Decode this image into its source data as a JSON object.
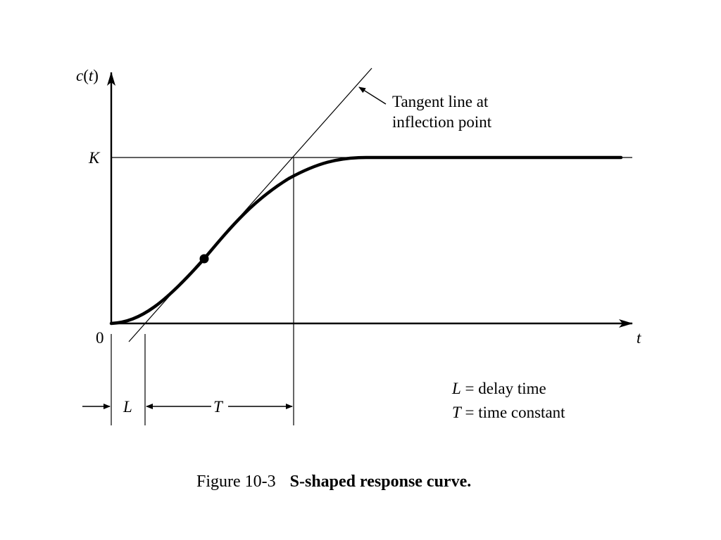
{
  "figure": {
    "number_label": "Figure 10-3",
    "caption": "S-shaped response curve."
  },
  "axes": {
    "y_label_prefix": "c(",
    "y_label_var": "t",
    "y_label_suffix": ")",
    "x_label": "t",
    "origin_label": "0",
    "k_label": "K"
  },
  "annotations": {
    "tangent_line_1": "Tangent line at",
    "tangent_line_2": "inflection point",
    "L_symbol": "L",
    "T_symbol": "T"
  },
  "legend": {
    "L_symbol": "L",
    "L_text": " = delay time",
    "T_symbol": "T",
    "T_text": " = time constant"
  },
  "colors": {
    "ink": "#000000",
    "background": "#ffffff"
  }
}
